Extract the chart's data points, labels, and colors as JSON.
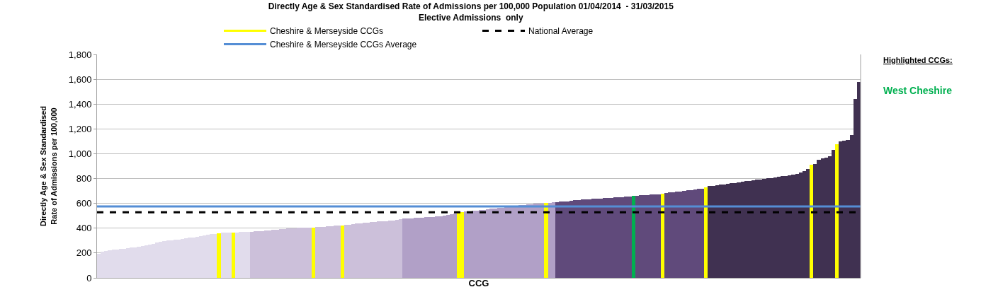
{
  "chart_data": {
    "type": "bar",
    "title": "Directly Age & Sex Standardised Rate of Admissions per 100,000 Population 01/04/2014  - 31/03/2015",
    "subtitle": "Elective Admissions  only",
    "xlabel": "CCG",
    "ylabel": "Directly Age & Sex Standardised Rate of Admissions per 100,000",
    "categories": [
      null,
      null,
      null,
      null,
      null,
      null,
      null,
      null,
      null,
      null,
      null,
      null,
      null,
      null,
      null,
      null,
      null,
      null,
      null,
      null,
      null,
      null,
      null,
      null,
      null,
      null,
      null,
      null,
      null,
      null,
      null,
      null,
      null,
      null,
      null,
      null,
      null,
      null,
      null,
      null,
      null,
      null,
      null,
      null,
      null,
      null,
      null,
      null,
      null,
      null,
      null,
      null,
      null,
      null,
      null,
      null,
      null,
      null,
      null,
      null,
      null,
      null,
      null,
      null,
      null,
      null,
      null,
      null,
      null,
      null,
      null,
      null,
      null,
      null,
      null,
      null,
      null,
      null,
      null,
      null,
      null,
      null,
      null,
      null,
      null,
      null,
      null,
      null,
      null,
      null,
      null,
      null,
      null,
      null,
      null,
      null,
      null,
      null,
      null,
      null,
      null,
      null,
      null,
      null,
      null,
      null,
      null,
      null,
      null,
      null,
      null,
      null,
      null,
      null,
      null,
      null,
      null,
      null,
      null,
      null,
      null,
      null,
      null,
      null,
      null,
      null,
      null,
      null,
      null,
      null,
      null,
      null,
      null,
      null,
      null,
      null,
      null,
      null,
      null,
      null,
      null,
      null,
      null,
      null,
      null,
      null,
      null,
      null,
      null,
      null,
      null,
      null,
      null,
      null,
      null,
      null,
      null,
      null,
      null,
      null,
      null,
      null,
      null,
      null,
      null,
      null,
      null,
      null,
      null,
      null,
      null,
      null,
      null,
      null,
      null,
      null,
      null,
      null,
      null,
      null,
      null,
      null,
      null,
      null,
      null,
      null,
      null,
      null,
      null,
      null,
      null,
      null,
      null,
      null,
      null,
      null,
      null,
      null,
      null,
      null,
      null,
      null,
      null,
      null,
      null,
      null,
      null,
      null,
      null,
      null
    ],
    "series": [
      {
        "values": [
          195,
          212,
          218,
          222,
          226,
          230,
          234,
          236,
          240,
          244,
          246,
          250,
          256,
          262,
          270,
          276,
          282,
          290,
          296,
          300,
          304,
          308,
          310,
          314,
          318,
          322,
          326,
          330,
          334,
          340,
          348,
          354,
          356,
          null,
          362,
          364,
          364,
          null,
          366,
          368,
          369,
          370,
          372,
          374,
          376,
          378,
          380,
          384,
          386,
          390,
          392,
          394,
          396,
          398,
          400,
          402,
          403,
          404,
          405,
          null,
          408,
          410,
          412,
          414,
          418,
          420,
          422,
          null,
          426,
          430,
          434,
          438,
          440,
          444,
          446,
          450,
          452,
          454,
          456,
          458,
          460,
          464,
          468,
          472,
          476,
          478,
          480,
          482,
          484,
          486,
          488,
          490,
          492,
          494,
          498,
          502,
          506,
          510,
          518,
          null,
          null,
          534,
          536,
          540,
          542,
          546,
          548,
          552,
          556,
          560,
          562,
          566,
          568,
          572,
          576,
          580,
          584,
          588,
          590,
          594,
          596,
          598,
          600,
          null,
          606,
          610,
          612,
          614,
          616,
          618,
          620,
          624,
          626,
          630,
          632,
          634,
          636,
          638,
          640,
          642,
          644,
          646,
          648,
          650,
          652,
          654,
          656,
          null,
          662,
          664,
          666,
          668,
          670,
          672,
          674,
          null,
          684,
          688,
          690,
          694,
          696,
          700,
          704,
          708,
          712,
          716,
          720,
          null,
          738,
          742,
          746,
          750,
          754,
          758,
          762,
          766,
          770,
          774,
          778,
          782,
          786,
          790,
          794,
          798,
          802,
          806,
          810,
          814,
          818,
          822,
          826,
          832,
          840,
          850,
          860,
          880,
          null,
          915,
          950,
          960,
          970,
          980,
          1030,
          null,
          1100,
          1105,
          1110,
          1150,
          1440,
          1580
        ],
        "colors": [
          "#e1dcec",
          "#e1dcec",
          "#e1dcec",
          "#e1dcec",
          "#e1dcec",
          "#e1dcec",
          "#e1dcec",
          "#e1dcec",
          "#e1dcec",
          "#e1dcec",
          "#e1dcec",
          "#e1dcec",
          "#e1dcec",
          "#e1dcec",
          "#e1dcec",
          "#e1dcec",
          "#e1dcec",
          "#e1dcec",
          "#e1dcec",
          "#e1dcec",
          "#e1dcec",
          "#e1dcec",
          "#e1dcec",
          "#e1dcec",
          "#e1dcec",
          "#e1dcec",
          "#e1dcec",
          "#e1dcec",
          "#e1dcec",
          "#e1dcec",
          "#e1dcec",
          "#e1dcec",
          "#e1dcec",
          "#e1dcec",
          "#e1dcec",
          "#e1dcec",
          "#e1dcec",
          "#e1dcec",
          "#e1dcec",
          "#e1dcec",
          "#e1dcec",
          "#e1dcec",
          "#ccc0da",
          "#ccc0da",
          "#ccc0da",
          "#ccc0da",
          "#ccc0da",
          "#ccc0da",
          "#ccc0da",
          "#ccc0da",
          "#ccc0da",
          "#ccc0da",
          "#ccc0da",
          "#ccc0da",
          "#ccc0da",
          "#ccc0da",
          "#ccc0da",
          "#ccc0da",
          "#ccc0da",
          "#ccc0da",
          "#ccc0da",
          "#ccc0da",
          "#ccc0da",
          "#ccc0da",
          "#ccc0da",
          "#ccc0da",
          "#ccc0da",
          "#ccc0da",
          "#ccc0da",
          "#ccc0da",
          "#ccc0da",
          "#ccc0da",
          "#ccc0da",
          "#ccc0da",
          "#ccc0da",
          "#ccc0da",
          "#ccc0da",
          "#ccc0da",
          "#ccc0da",
          "#ccc0da",
          "#ccc0da",
          "#ccc0da",
          "#ccc0da",
          "#ccc0da",
          "#b1a0c7",
          "#b1a0c7",
          "#b1a0c7",
          "#b1a0c7",
          "#b1a0c7",
          "#b1a0c7",
          "#b1a0c7",
          "#b1a0c7",
          "#b1a0c7",
          "#b1a0c7",
          "#b1a0c7",
          "#b1a0c7",
          "#b1a0c7",
          "#b1a0c7",
          "#b1a0c7",
          "#b1a0c7",
          "#b1a0c7",
          "#b1a0c7",
          "#b1a0c7",
          "#b1a0c7",
          "#b1a0c7",
          "#b1a0c7",
          "#b1a0c7",
          "#b1a0c7",
          "#b1a0c7",
          "#b1a0c7",
          "#b1a0c7",
          "#b1a0c7",
          "#b1a0c7",
          "#b1a0c7",
          "#b1a0c7",
          "#b1a0c7",
          "#b1a0c7",
          "#b1a0c7",
          "#b1a0c7",
          "#b1a0c7",
          "#b1a0c7",
          "#b1a0c7",
          "#b1a0c7",
          "#b1a0c7",
          "#b1a0c7",
          "#b1a0c7",
          "#604a7b",
          "#604a7b",
          "#604a7b",
          "#604a7b",
          "#604a7b",
          "#604a7b",
          "#604a7b",
          "#604a7b",
          "#604a7b",
          "#604a7b",
          "#604a7b",
          "#604a7b",
          "#604a7b",
          "#604a7b",
          "#604a7b",
          "#604a7b",
          "#604a7b",
          "#604a7b",
          "#604a7b",
          "#604a7b",
          "#604a7b",
          "#604a7b",
          "#604a7b",
          "#604a7b",
          "#604a7b",
          "#604a7b",
          "#604a7b",
          "#604a7b",
          "#604a7b",
          "#604a7b",
          "#604a7b",
          "#604a7b",
          "#604a7b",
          "#604a7b",
          "#604a7b",
          "#604a7b",
          "#604a7b",
          "#604a7b",
          "#604a7b",
          "#604a7b",
          "#604a7b",
          "#604a7b",
          "#403151",
          "#403151",
          "#403151",
          "#403151",
          "#403151",
          "#403151",
          "#403151",
          "#403151",
          "#403151",
          "#403151",
          "#403151",
          "#403151",
          "#403151",
          "#403151",
          "#403151",
          "#403151",
          "#403151",
          "#403151",
          "#403151",
          "#403151",
          "#403151",
          "#403151",
          "#403151",
          "#403151",
          "#403151",
          "#403151",
          "#403151",
          "#403151",
          "#403151",
          "#403151",
          "#403151",
          "#403151",
          "#403151",
          "#403151",
          "#403151",
          "#403151",
          "#403151",
          "#403151",
          "#403151",
          "#403151",
          "#403151",
          "#403151"
        ]
      },
      {
        "name": "Cheshire & Merseyside CCGs",
        "color": "#ffff00",
        "values": [
          null,
          null,
          null,
          null,
          null,
          null,
          null,
          null,
          null,
          null,
          null,
          null,
          null,
          null,
          null,
          null,
          null,
          null,
          null,
          null,
          null,
          null,
          null,
          null,
          null,
          null,
          null,
          null,
          null,
          null,
          null,
          null,
          null,
          360,
          null,
          null,
          null,
          365,
          null,
          null,
          null,
          null,
          null,
          null,
          null,
          null,
          null,
          null,
          null,
          null,
          null,
          null,
          null,
          null,
          null,
          null,
          null,
          null,
          null,
          406,
          null,
          null,
          null,
          null,
          null,
          null,
          null,
          424,
          null,
          null,
          null,
          null,
          null,
          null,
          null,
          null,
          null,
          null,
          null,
          null,
          null,
          null,
          null,
          null,
          null,
          null,
          null,
          null,
          null,
          null,
          null,
          null,
          null,
          null,
          null,
          null,
          null,
          null,
          null,
          528,
          530,
          null,
          null,
          null,
          null,
          null,
          null,
          null,
          null,
          null,
          null,
          null,
          null,
          null,
          null,
          null,
          null,
          null,
          null,
          null,
          null,
          null,
          null,
          604,
          null,
          null,
          null,
          null,
          null,
          null,
          null,
          null,
          null,
          null,
          null,
          null,
          null,
          null,
          null,
          null,
          null,
          null,
          null,
          null,
          null,
          null,
          null,
          660,
          null,
          null,
          null,
          null,
          null,
          null,
          null,
          680,
          null,
          null,
          null,
          null,
          null,
          null,
          null,
          null,
          null,
          null,
          null,
          730,
          null,
          null,
          null,
          null,
          null,
          null,
          null,
          null,
          null,
          null,
          null,
          null,
          null,
          null,
          null,
          null,
          null,
          null,
          null,
          null,
          null,
          null,
          null,
          null,
          null,
          null,
          null,
          null,
          910,
          null,
          null,
          null,
          null,
          null,
          null,
          1075,
          null,
          null,
          null,
          null,
          null,
          null
        ],
        "colors": [
          null,
          null,
          null,
          null,
          null,
          null,
          null,
          null,
          null,
          null,
          null,
          null,
          null,
          null,
          null,
          null,
          null,
          null,
          null,
          null,
          null,
          null,
          null,
          null,
          null,
          null,
          null,
          null,
          null,
          null,
          null,
          null,
          null,
          "#ffff00",
          null,
          null,
          null,
          "#ffff00",
          null,
          null,
          null,
          null,
          null,
          null,
          null,
          null,
          null,
          null,
          null,
          null,
          null,
          null,
          null,
          null,
          null,
          null,
          null,
          null,
          null,
          "#ffff00",
          null,
          null,
          null,
          null,
          null,
          null,
          null,
          "#ffff00",
          null,
          null,
          null,
          null,
          null,
          null,
          null,
          null,
          null,
          null,
          null,
          null,
          null,
          null,
          null,
          null,
          null,
          null,
          null,
          null,
          null,
          null,
          null,
          null,
          null,
          null,
          null,
          null,
          null,
          null,
          null,
          "#ffff00",
          "#ffff00",
          null,
          null,
          null,
          null,
          null,
          null,
          null,
          null,
          null,
          null,
          null,
          null,
          null,
          null,
          null,
          null,
          null,
          null,
          null,
          null,
          null,
          null,
          "#ffff00",
          null,
          null,
          null,
          null,
          null,
          null,
          null,
          null,
          null,
          null,
          null,
          null,
          null,
          null,
          null,
          null,
          null,
          null,
          null,
          null,
          null,
          null,
          null,
          "#00b050",
          null,
          null,
          null,
          null,
          null,
          null,
          null,
          "#ffff00",
          null,
          null,
          null,
          null,
          null,
          null,
          null,
          null,
          null,
          null,
          null,
          "#ffff00",
          null,
          null,
          null,
          null,
          null,
          null,
          null,
          null,
          null,
          null,
          null,
          null,
          null,
          null,
          null,
          null,
          null,
          null,
          null,
          null,
          null,
          null,
          null,
          null,
          null,
          null,
          null,
          null,
          "#ffff00",
          null,
          null,
          null,
          null,
          null,
          null,
          "#ffff00",
          null,
          null,
          null,
          null,
          null,
          null
        ]
      }
    ],
    "ref_lines": [
      {
        "axis": "y",
        "value": 528,
        "label": "National Average",
        "color": "#000000",
        "line_style": "dashed"
      },
      {
        "axis": "y",
        "value": 575,
        "label": "Cheshire & Merseyside CCGs Average",
        "color": "#558ed5",
        "line_style": "solid"
      }
    ],
    "annotations": [
      "Highlighted CCGs:",
      "West Cheshire"
    ],
    "ylim": [
      0,
      1800
    ],
    "yticks": [
      0,
      200,
      400,
      600,
      800,
      {
        "value": 1000,
        "label": "1,000"
      },
      {
        "value": 1200,
        "label": "1,200"
      },
      {
        "value": 1400,
        "label": "1,400"
      },
      {
        "value": 1600,
        "label": "1,600"
      },
      {
        "value": 1800,
        "label": "1,800"
      }
    ],
    "grid": "y",
    "legend": "top"
  }
}
